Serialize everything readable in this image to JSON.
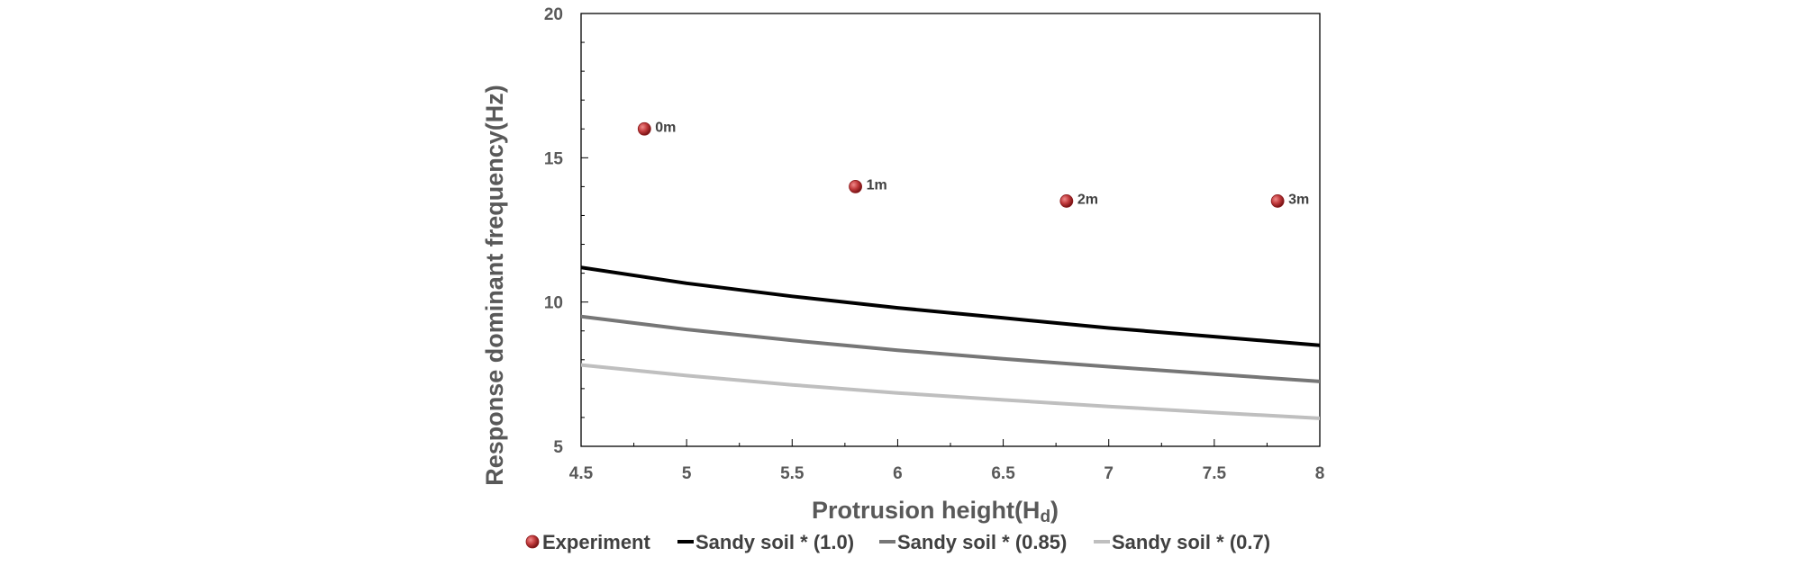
{
  "chart_data": {
    "type": "line",
    "xlabel": "Protrusion height(Hd)",
    "xlabel_main": "Protrusion height(H",
    "xlabel_sub": "d",
    "xlabel_close": ")",
    "ylabel": "Response dominant frequency(Hz)",
    "xlim": [
      4.5,
      8
    ],
    "ylim": [
      5,
      20
    ],
    "xticks": [
      "4.5",
      "5",
      "5.5",
      "6",
      "6.5",
      "7",
      "7.5",
      "8"
    ],
    "yticks": [
      "5",
      "10",
      "15",
      "20"
    ],
    "grid": false,
    "legend_position": "bottom",
    "scatter": {
      "name": "Experiment",
      "color": "#c0393b",
      "points": [
        {
          "x": 4.8,
          "y": 16.0,
          "label": "0m"
        },
        {
          "x": 5.8,
          "y": 14.0,
          "label": "1m"
        },
        {
          "x": 6.8,
          "y": 13.5,
          "label": "2m"
        },
        {
          "x": 7.8,
          "y": 13.5,
          "label": "3m"
        }
      ]
    },
    "series": [
      {
        "name": "Sandy soil * (1.0)",
        "color": "#000000",
        "x": [
          4.5,
          5.0,
          5.5,
          6.0,
          6.5,
          7.0,
          7.5,
          8.0
        ],
        "values": [
          11.2,
          10.65,
          10.2,
          9.8,
          9.45,
          9.1,
          8.8,
          8.5
        ]
      },
      {
        "name": "Sandy soil * (0.85)",
        "color": "#767676",
        "x": [
          4.5,
          5.0,
          5.5,
          6.0,
          6.5,
          7.0,
          7.5,
          8.0
        ],
        "values": [
          9.5,
          9.05,
          8.67,
          8.33,
          8.03,
          7.76,
          7.5,
          7.25
        ]
      },
      {
        "name": "Sandy soil * (0.7)",
        "color": "#bfbfbf",
        "x": [
          4.5,
          5.0,
          5.5,
          6.0,
          6.5,
          7.0,
          7.5,
          8.0
        ],
        "values": [
          7.82,
          7.45,
          7.13,
          6.85,
          6.61,
          6.38,
          6.17,
          5.97
        ]
      }
    ]
  }
}
